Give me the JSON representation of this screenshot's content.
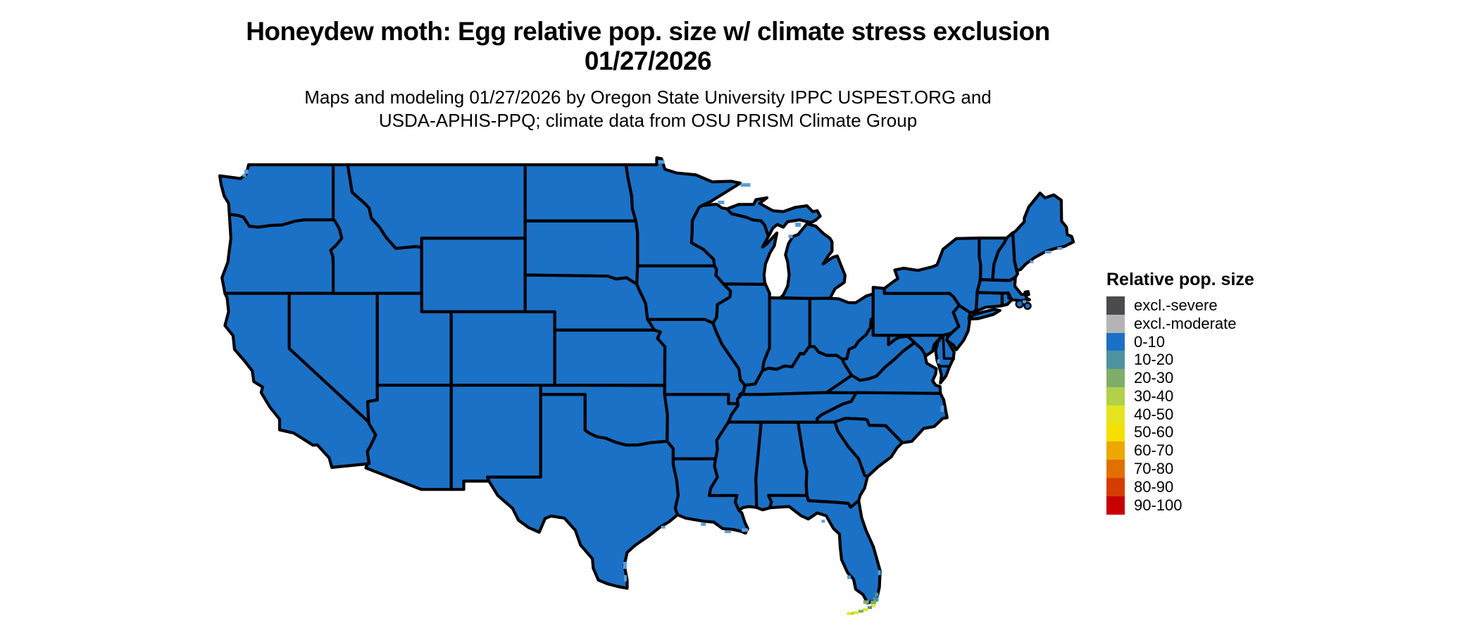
{
  "figure": {
    "title_line1": "Honeydew moth: Egg relative pop. size w/ climate stress exclusion",
    "title_line2": "01/27/2026",
    "subtitle_line1": "Maps and modeling 01/27/2026 by Oregon State University IPPC USPEST.ORG and",
    "subtitle_line2": "USDA-APHIS-PPQ; climate data from OSU PRISM Climate Group"
  },
  "legend": {
    "title": "Relative pop. size",
    "items": [
      {
        "label": "excl.-severe",
        "color": "#4b4b4d"
      },
      {
        "label": "excl.-moderate",
        "color": "#b4b4b6"
      },
      {
        "label": "0-10",
        "color": "#1b71c6"
      },
      {
        "label": "10-20",
        "color": "#4d93a0"
      },
      {
        "label": "20-30",
        "color": "#7fae6a"
      },
      {
        "label": "30-40",
        "color": "#b2d04a"
      },
      {
        "label": "40-50",
        "color": "#e6e41f"
      },
      {
        "label": "50-60",
        "color": "#f6df00"
      },
      {
        "label": "60-70",
        "color": "#eda800"
      },
      {
        "label": "70-80",
        "color": "#e17000"
      },
      {
        "label": "80-90",
        "color": "#d63c00"
      },
      {
        "label": "90-100",
        "color": "#c80000"
      }
    ]
  },
  "map": {
    "region": "Contiguous United States",
    "dominant_category": "0-10",
    "border_color": "#000000",
    "background_color": "#ffffff",
    "coastal_cell_color": "#5b9bd8",
    "south_florida_cells": [
      {
        "category": "10-20",
        "lon": -80.35,
        "lat": 25.35,
        "w": 8,
        "h": 6
      },
      {
        "category": "20-30",
        "lon": -80.5,
        "lat": 25.18,
        "w": 8,
        "h": 5
      },
      {
        "category": "10-20",
        "lon": -80.28,
        "lat": 25.6,
        "w": 5,
        "h": 6
      },
      {
        "category": "20-30",
        "lon": -81.0,
        "lat": 25.2,
        "w": 8,
        "h": 5
      },
      {
        "category": "40-50",
        "lon": -80.55,
        "lat": 25.0,
        "w": 7,
        "h": 4
      },
      {
        "category": "10-20",
        "lon": -80.75,
        "lat": 24.9,
        "w": 6,
        "h": 4
      },
      {
        "category": "40-50",
        "lon": -81.05,
        "lat": 24.78,
        "w": 8,
        "h": 4
      },
      {
        "category": "20-30",
        "lon": -81.35,
        "lat": 24.7,
        "w": 7,
        "h": 4
      },
      {
        "category": "40-50",
        "lon": -81.7,
        "lat": 24.62,
        "w": 8,
        "h": 4
      },
      {
        "category": "30-40",
        "lon": -81.95,
        "lat": 24.58,
        "w": 5,
        "h": 4
      },
      {
        "category": "40-50",
        "lon": -82.15,
        "lat": 24.58,
        "w": 6,
        "h": 4
      }
    ]
  }
}
